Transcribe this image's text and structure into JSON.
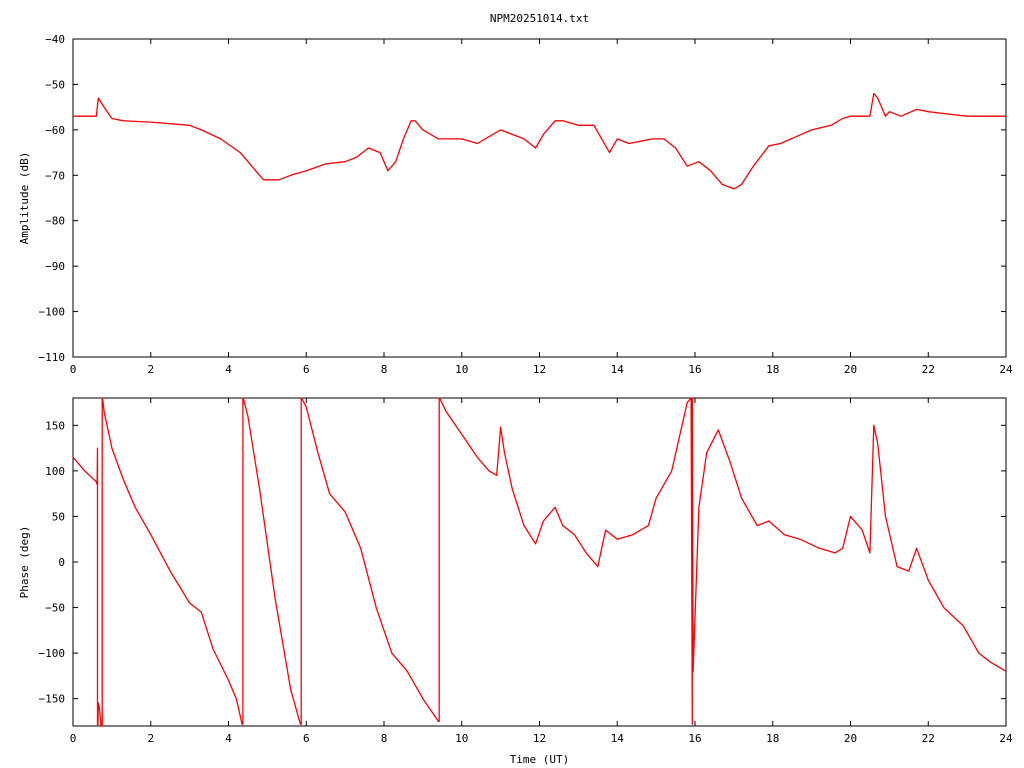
{
  "chart_data": [
    {
      "type": "line",
      "title": "NPM20251014.txt",
      "xlabel": "",
      "ylabel": "Amplitude (dB)",
      "xlim": [
        0,
        24
      ],
      "ylim": [
        -110,
        -40
      ],
      "xticks": [
        "0",
        "2",
        "4",
        "6",
        "8",
        "10",
        "12",
        "14",
        "16",
        "18",
        "20",
        "22",
        "24"
      ],
      "yticks": [
        "-110",
        "-100",
        "-90",
        "-80",
        "-70",
        "-60",
        "-50",
        "-40"
      ],
      "series": [
        {
          "color": "#ff0000",
          "x": [
            0,
            0.6,
            0.65,
            0.8,
            1.0,
            1.3,
            2,
            3,
            3.3,
            3.8,
            4.3,
            4.6,
            4.9,
            5.3,
            5.6,
            6,
            6.5,
            7,
            7.3,
            7.6,
            7.9,
            8.1,
            8.3,
            8.5,
            8.7,
            8.8,
            9.0,
            9.4,
            10,
            10.4,
            10.8,
            11,
            11.3,
            11.6,
            11.9,
            12.1,
            12.4,
            12.6,
            13,
            13.4,
            13.6,
            13.8,
            14,
            14.3,
            14.6,
            14.9,
            15.2,
            15.5,
            15.8,
            16.1,
            16.4,
            16.7,
            17,
            17.2,
            17.5,
            17.9,
            18.2,
            18.6,
            19,
            19.5,
            19.8,
            20,
            20.5,
            20.6,
            20.7,
            20.9,
            21,
            21.3,
            21.7,
            22,
            22.5,
            23,
            23.5,
            24
          ],
          "y": [
            -57,
            -57,
            -53,
            -55,
            -57.5,
            -58,
            -58.3,
            -59,
            -60,
            -62,
            -65,
            -68,
            -71,
            -71,
            -70,
            -69,
            -67.5,
            -67,
            -66,
            -64,
            -65,
            -69,
            -67,
            -62,
            -58,
            -58,
            -60,
            -62,
            -62,
            -63,
            -61,
            -60,
            -61,
            -62,
            -64,
            -61,
            -58,
            -58,
            -59,
            -59,
            -62,
            -65,
            -62,
            -63,
            -62.5,
            -62,
            -62,
            -64,
            -68,
            -67,
            -69,
            -72,
            -73,
            -72,
            -68,
            -63.5,
            -63,
            -61.5,
            -60,
            -59,
            -57.5,
            -57,
            -57,
            -52,
            -53,
            -57,
            -56,
            -57,
            -55.5,
            -56,
            -56.5,
            -57,
            -57,
            -57
          ]
        }
      ]
    },
    {
      "type": "line",
      "title": "",
      "xlabel": "Time (UT)",
      "ylabel": "Phase (deg)",
      "xlim": [
        0,
        24
      ],
      "ylim": [
        -180,
        180
      ],
      "xticks": [
        "0",
        "2",
        "4",
        "6",
        "8",
        "10",
        "12",
        "14",
        "16",
        "18",
        "20",
        "22",
        "24"
      ],
      "yticks": [
        "-150",
        "-100",
        "-50",
        "0",
        "50",
        "100",
        "150"
      ],
      "series": [
        {
          "color": "#ff0000",
          "x": [
            0,
            0.3,
            0.6,
            0.62,
            0.63,
            0.63,
            0.64,
            0.65,
            0.68,
            0.7,
            0.72,
            0.73,
            0.75,
            0.75,
            0.76,
            0.8,
            1.0,
            1.3,
            1.6,
            2.0,
            2.5,
            3.0,
            3.3,
            3.6,
            4.0,
            4.2,
            4.35,
            4.37,
            4.37,
            4.38,
            4.5,
            4.8,
            5.2,
            5.6,
            5.85,
            5.87,
            5.87,
            5.88,
            6.0,
            6.3,
            6.6,
            7.0,
            7.4,
            7.8,
            8.2,
            8.6,
            9.0,
            9.4,
            9.42,
            9.42,
            9.43,
            9.6,
            10.0,
            10.4,
            10.7,
            10.9,
            11.0,
            11.1,
            11.3,
            11.6,
            11.9,
            12.1,
            12.4,
            12.6,
            12.9,
            13.2,
            13.5,
            13.7,
            14.0,
            14.4,
            14.8,
            15.0,
            15.4,
            15.8,
            15.9,
            15.93,
            15.93,
            15.95,
            16.1,
            16.3,
            16.6,
            16.9,
            17.2,
            17.6,
            17.9,
            18.3,
            18.7,
            19.2,
            19.6,
            19.8,
            20.0,
            20.3,
            20.5,
            20.6,
            20.7,
            20.9,
            21.2,
            21.5,
            21.7,
            22,
            22.4,
            22.9,
            23.3,
            23.6,
            24
          ],
          "y": [
            115,
            100,
            88,
            85,
            125,
            -180,
            -180,
            -155,
            -160,
            -170,
            -180,
            -180,
            -180,
            180,
            180,
            165,
            125,
            90,
            60,
            30,
            -10,
            -45,
            -55,
            -95,
            -130,
            -150,
            -178,
            -178,
            180,
            180,
            160,
            80,
            -40,
            -140,
            -178,
            -178,
            180,
            180,
            170,
            120,
            75,
            55,
            15,
            -50,
            -100,
            -120,
            -150,
            -175,
            -175,
            180,
            180,
            165,
            140,
            115,
            100,
            95,
            148,
            120,
            80,
            40,
            20,
            45,
            60,
            40,
            30,
            10,
            -5,
            35,
            25,
            30,
            40,
            70,
            100,
            175,
            180,
            -178,
            180,
            -120,
            60,
            120,
            145,
            110,
            70,
            40,
            45,
            30,
            25,
            15,
            10,
            15,
            50,
            35,
            10,
            150,
            130,
            50,
            -5,
            -10,
            15,
            -20,
            -50,
            -70,
            -100,
            -110,
            -120
          ]
        }
      ]
    }
  ]
}
